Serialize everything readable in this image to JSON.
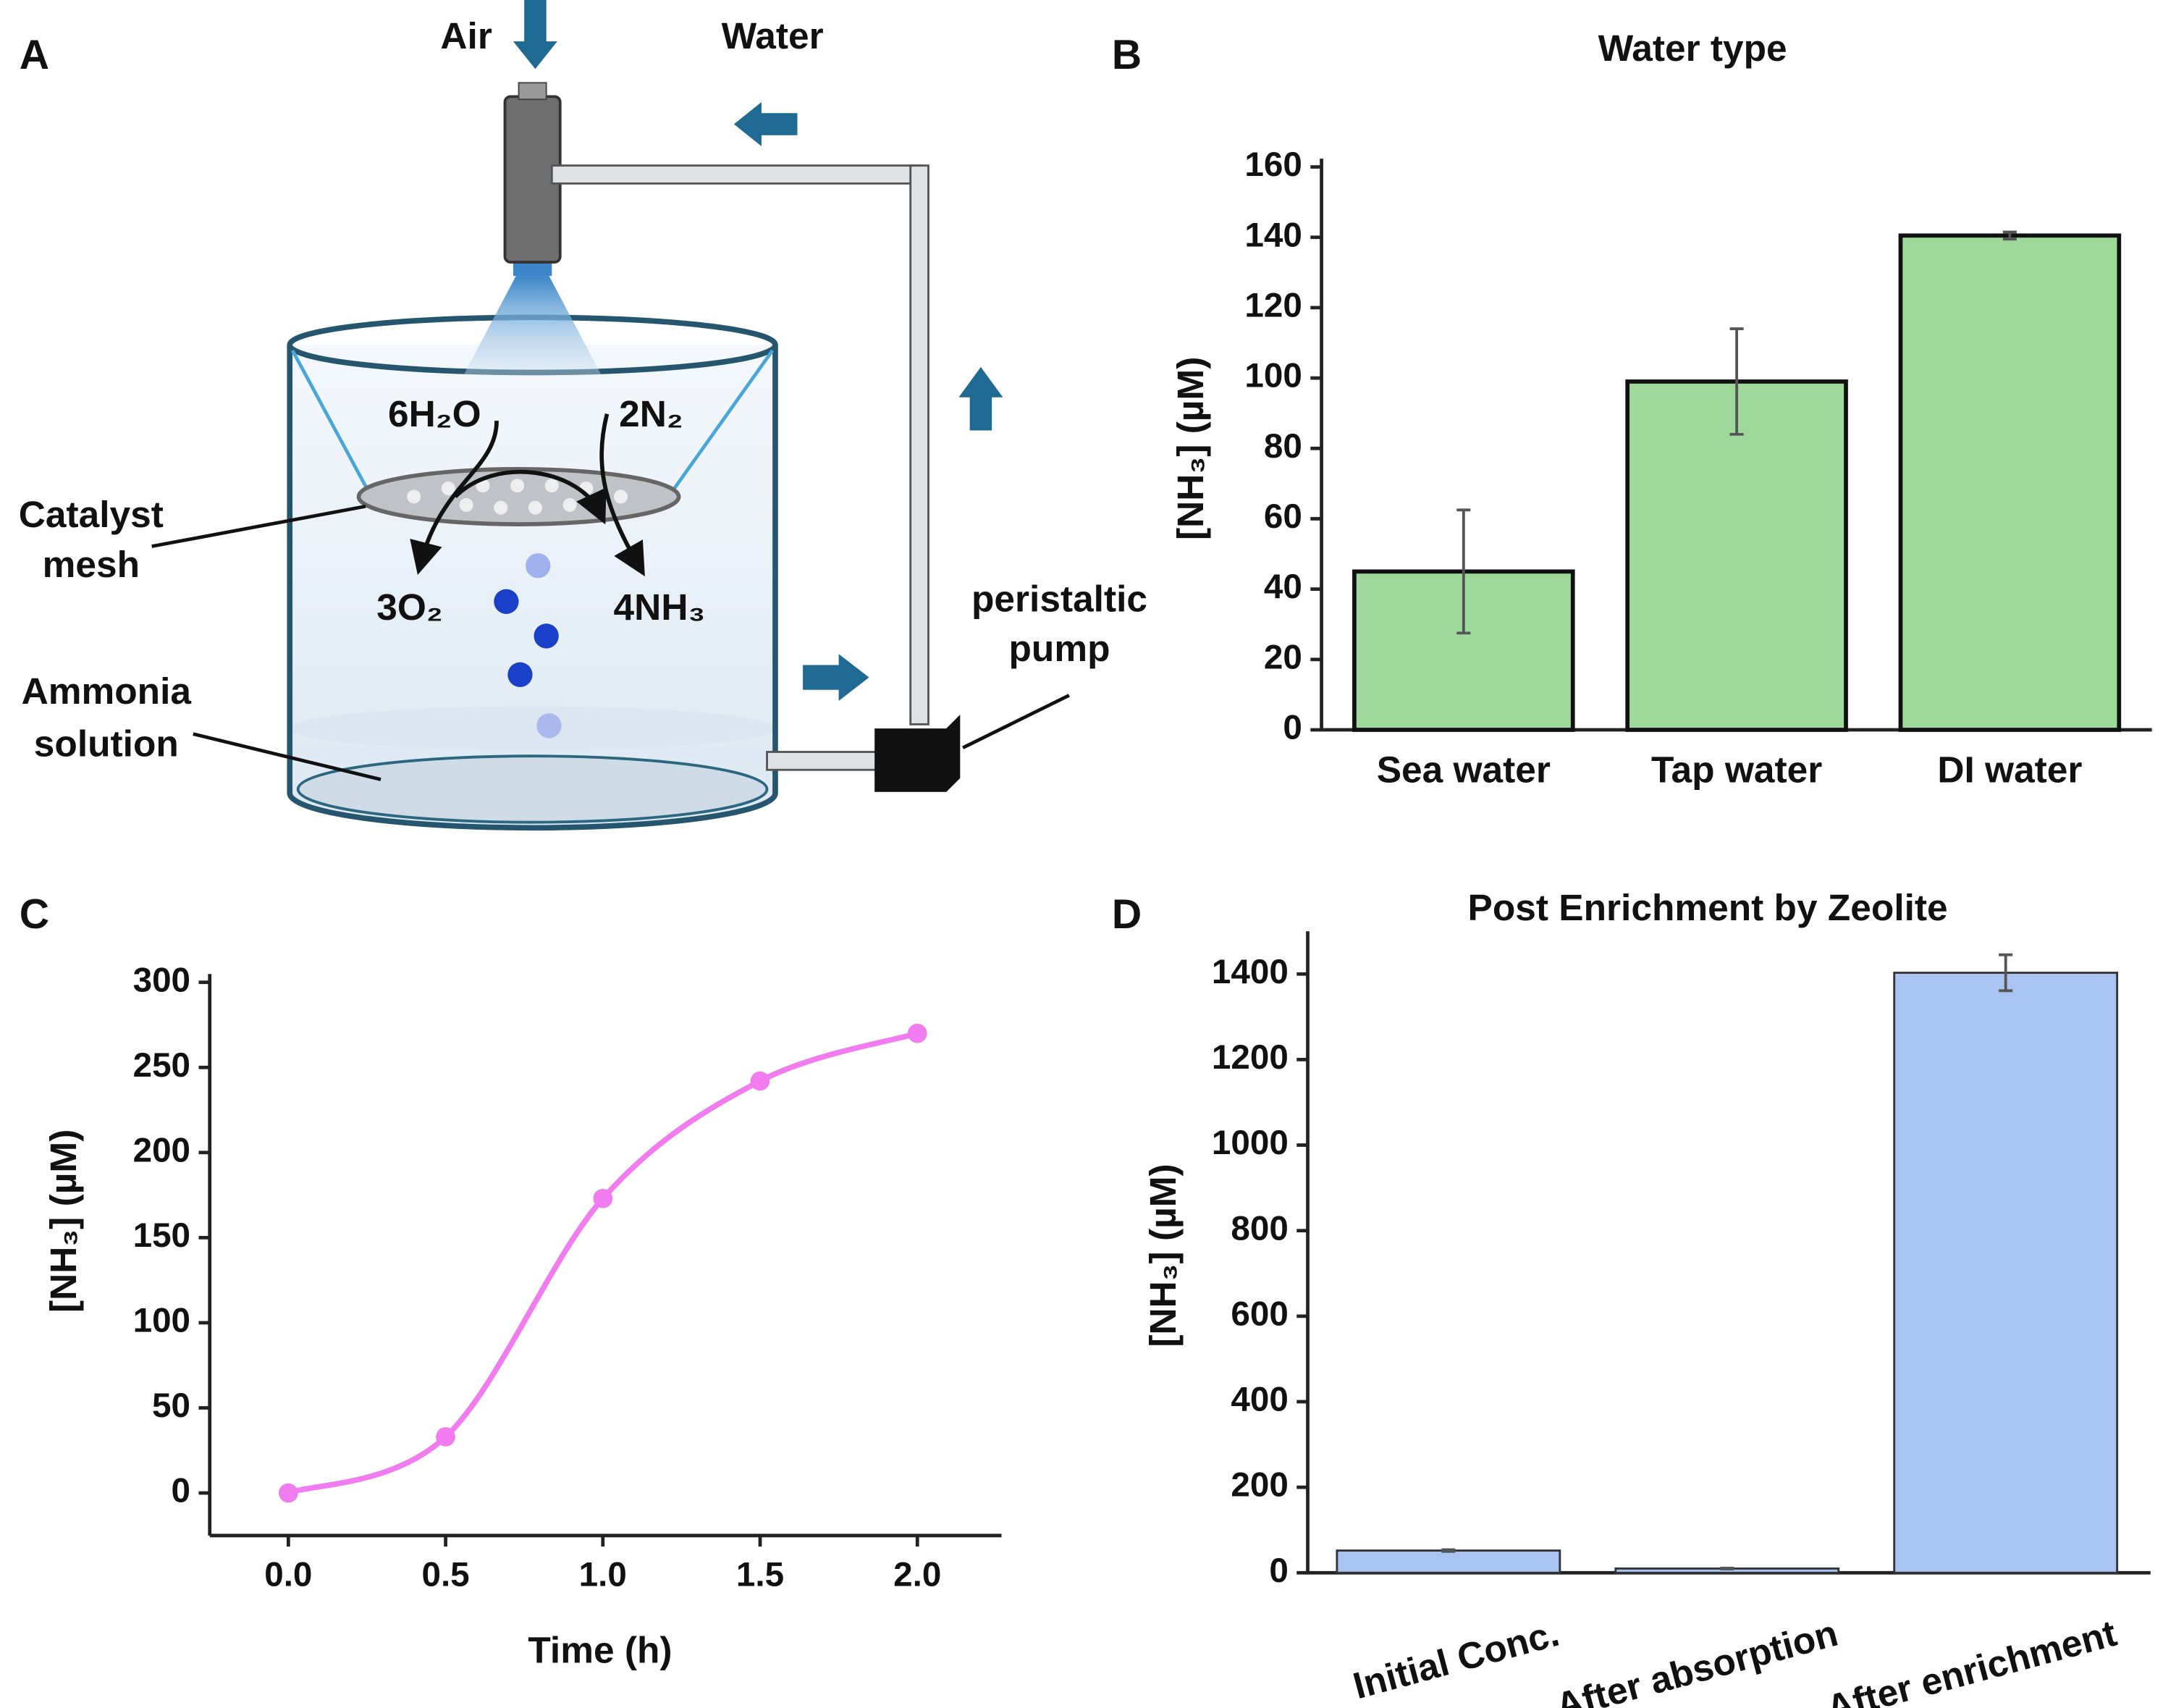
{
  "panels": [
    "A",
    "B",
    "C",
    "D"
  ],
  "diagram": {
    "air": "Air",
    "water": "Water",
    "reactant_water": "6H₂O",
    "reactant_nitrogen": "2N₂",
    "product_oxygen": "3O₂",
    "product_ammonia": "4NH₃",
    "catalyst": [
      "Catalyst",
      "mesh"
    ],
    "solution": [
      "Ammonia",
      "solution"
    ],
    "pump": [
      "peristaltic",
      "pump"
    ]
  },
  "chart_data": [
    {
      "type": "bar",
      "title": "Water type",
      "ylabel": "[NH₃] (µM)",
      "categories": [
        "Sea water",
        "Tap water",
        "DI water"
      ],
      "values": [
        45,
        99,
        140.5
      ],
      "errors": [
        17.5,
        15,
        1
      ],
      "color": "#9ed99b",
      "ylim": [
        0,
        160
      ],
      "yticks": [
        0,
        20,
        40,
        60,
        80,
        100,
        120,
        140,
        160
      ]
    },
    {
      "type": "line",
      "xlabel": "Time (h)",
      "ylabel": "[NH₃] (µM)",
      "x": [
        0,
        0.5,
        1,
        1.5,
        2
      ],
      "values": [
        0,
        33,
        173,
        242,
        270
      ],
      "color": "#f07cf0",
      "xlim": [
        -0.25,
        2.25
      ],
      "ylim": [
        -25,
        300
      ],
      "xticks": [
        {
          "value": 0,
          "label": "0.0"
        },
        {
          "value": 0.5,
          "label": "0.5"
        },
        {
          "value": 1,
          "label": "1.0"
        },
        {
          "value": 1.5,
          "label": "1.5"
        },
        {
          "value": 2,
          "label": "2.0"
        }
      ],
      "yticks": [
        0,
        50,
        100,
        150,
        200,
        250,
        300
      ]
    },
    {
      "type": "bar",
      "title": "Post Enrichment by Zeolite",
      "ylabel": "[NH₃] (µM)",
      "categories": [
        "Initial Conc.",
        "After absorption",
        "After enrichment"
      ],
      "values": [
        52,
        10,
        1403
      ],
      "errors": [
        2,
        1,
        42
      ],
      "color": "#a9c4f2",
      "ylim": [
        0,
        1500
      ],
      "yticks": [
        0,
        200,
        400,
        600,
        800,
        1000,
        1200,
        1400
      ],
      "rotate_labels": true
    }
  ]
}
